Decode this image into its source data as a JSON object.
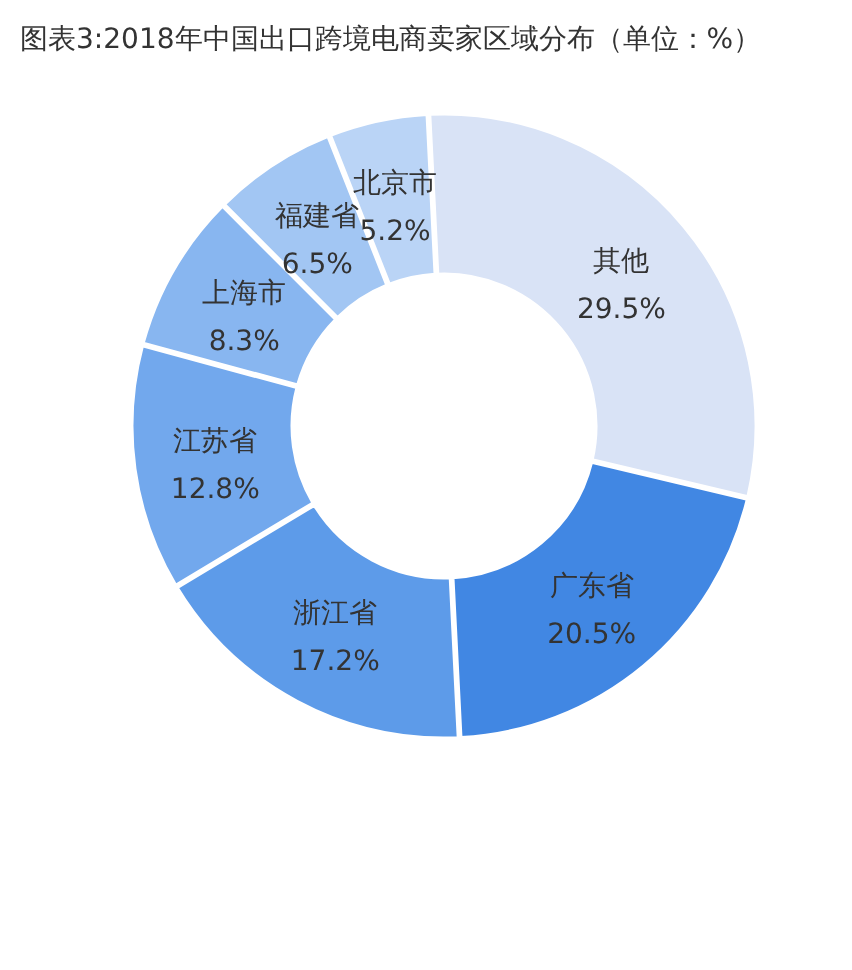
{
  "chart_data": {
    "type": "donut",
    "title": "图表3:2018年中国出口跨境电商卖家区域分布（单位：%）",
    "categories": [
      "其他",
      "广东省",
      "浙江省",
      "江苏省",
      "上海市",
      "福建省",
      "北京市"
    ],
    "values": [
      29.5,
      20.5,
      17.2,
      12.8,
      8.3,
      6.5,
      5.2
    ],
    "value_labels": [
      "29.5%",
      "20.5%",
      "17.2%",
      "12.8%",
      "8.3%",
      "6.5%",
      "5.2%"
    ],
    "colors": [
      "#d9e3f6",
      "#4187e3",
      "#5d9be9",
      "#72a8ed",
      "#88b6f0",
      "#a2c6f3",
      "#bad4f6"
    ]
  }
}
